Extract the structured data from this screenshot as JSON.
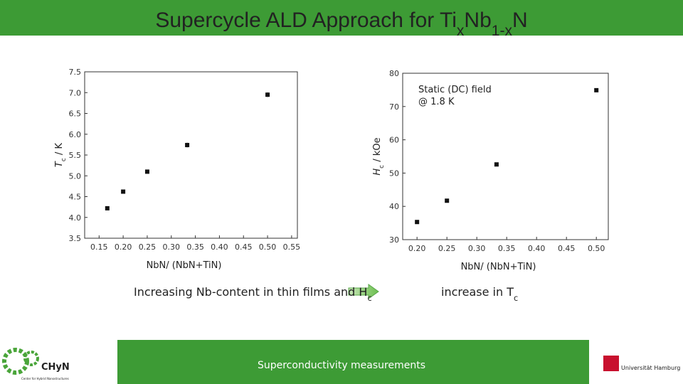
{
  "header": {
    "title": [
      "Supercycle ALD Approach for Ti",
      "x",
      "Nb",
      "1-x",
      "N"
    ]
  },
  "chart_data": [
    {
      "type": "scatter",
      "xlabel": "NbN/ (NbN+TiN)",
      "ylabel": [
        "T",
        "c",
        " / K"
      ],
      "x": [
        0.167,
        0.2,
        0.25,
        0.333,
        0.5
      ],
      "values": [
        4.22,
        4.62,
        5.1,
        5.74,
        6.95
      ],
      "errors": [
        0.04,
        0.05,
        0.05,
        0.06,
        0.06
      ],
      "color": "#111111",
      "xlim": [
        0.12,
        0.562
      ],
      "ylim": [
        3.5,
        7.5
      ],
      "xticks": [
        0.15,
        {
          "value": 0.2,
          "label": "0.20"
        },
        0.25,
        {
          "value": 0.3,
          "label": "0.30"
        },
        0.35,
        {
          "value": 0.4,
          "label": "0.40"
        },
        0.45,
        {
          "value": 0.5,
          "label": "0.50"
        },
        0.55
      ],
      "yticks": [
        3.5,
        {
          "value": 4,
          "label": "4.0"
        },
        4.5,
        {
          "value": 5,
          "label": "5.0"
        },
        5.5,
        {
          "value": 6,
          "label": "6.0"
        },
        6.5,
        {
          "value": 7,
          "label": "7.0"
        },
        7.5
      ]
    },
    {
      "type": "scatter",
      "xlabel": "NbN/ (NbN+TiN)",
      "ylabel": [
        "H",
        "c",
        " / kOe"
      ],
      "annotation": [
        "Static (DC) field",
        "@ 1.8 K"
      ],
      "x": [
        0.2,
        0.25,
        0.333,
        0.5
      ],
      "values": [
        35.3,
        41.7,
        52.6,
        74.9
      ],
      "color": "#111111",
      "xlim": [
        0.176,
        0.52
      ],
      "ylim": [
        30,
        80
      ],
      "xticks": [
        {
          "value": 0.2,
          "label": "0.20"
        },
        0.25,
        {
          "value": 0.3,
          "label": "0.30"
        },
        0.35,
        {
          "value": 0.4,
          "label": "0.40"
        },
        0.45,
        {
          "value": 0.5,
          "label": "0.50"
        }
      ],
      "yticks": [
        30,
        40,
        50,
        60,
        70,
        80
      ]
    }
  ],
  "notes": {
    "left": [
      "Increasing Nb-content in thin films and H",
      "c"
    ],
    "right": [
      "increase in T",
      "c"
    ]
  },
  "footer": {
    "banner": "Superconductivity measurements",
    "logo_left": "CHyN",
    "logo_left_sub": "Center for Hybrid Nanostructures",
    "logo_right": "Universität Hamburg"
  }
}
